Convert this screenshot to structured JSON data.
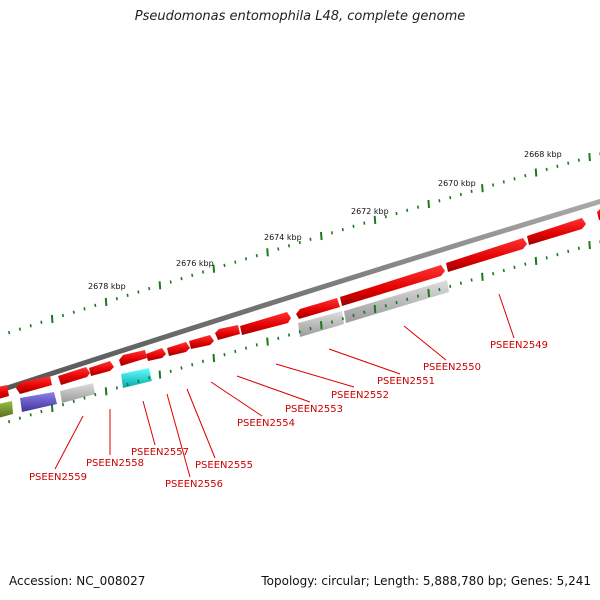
{
  "title": "Pseudomonas entomophila L48, complete genome",
  "footer": {
    "accession": "Accession: NC_008027",
    "topology": "Topology: circular; Length: 5,888,780 bp; Genes: 5,241"
  },
  "ruler_labels": [
    "2668 kbp",
    "2670 kbp",
    "2672 kbp",
    "2674 kbp",
    "2676 kbp",
    "2678 kbp"
  ],
  "gene_labels": [
    "PSEEN2549",
    "PSEEN2550",
    "PSEEN2551",
    "PSEEN2552",
    "PSEEN2553",
    "PSEEN2554",
    "PSEEN2555",
    "PSEEN2556",
    "PSEEN2557",
    "PSEEN2558",
    "PSEEN2559"
  ],
  "colors": {
    "backbone": "#7a7a7a",
    "cds": "#ee1111",
    "cds_dark": "#a40000",
    "gray_feature": "#bdbdbd",
    "cyan_feature": "#22eeee",
    "purple_feature": "#6a5acd",
    "olive_feature": "#7a9a2a",
    "tick": "#1a7a1a",
    "label": "#cc0000"
  }
}
